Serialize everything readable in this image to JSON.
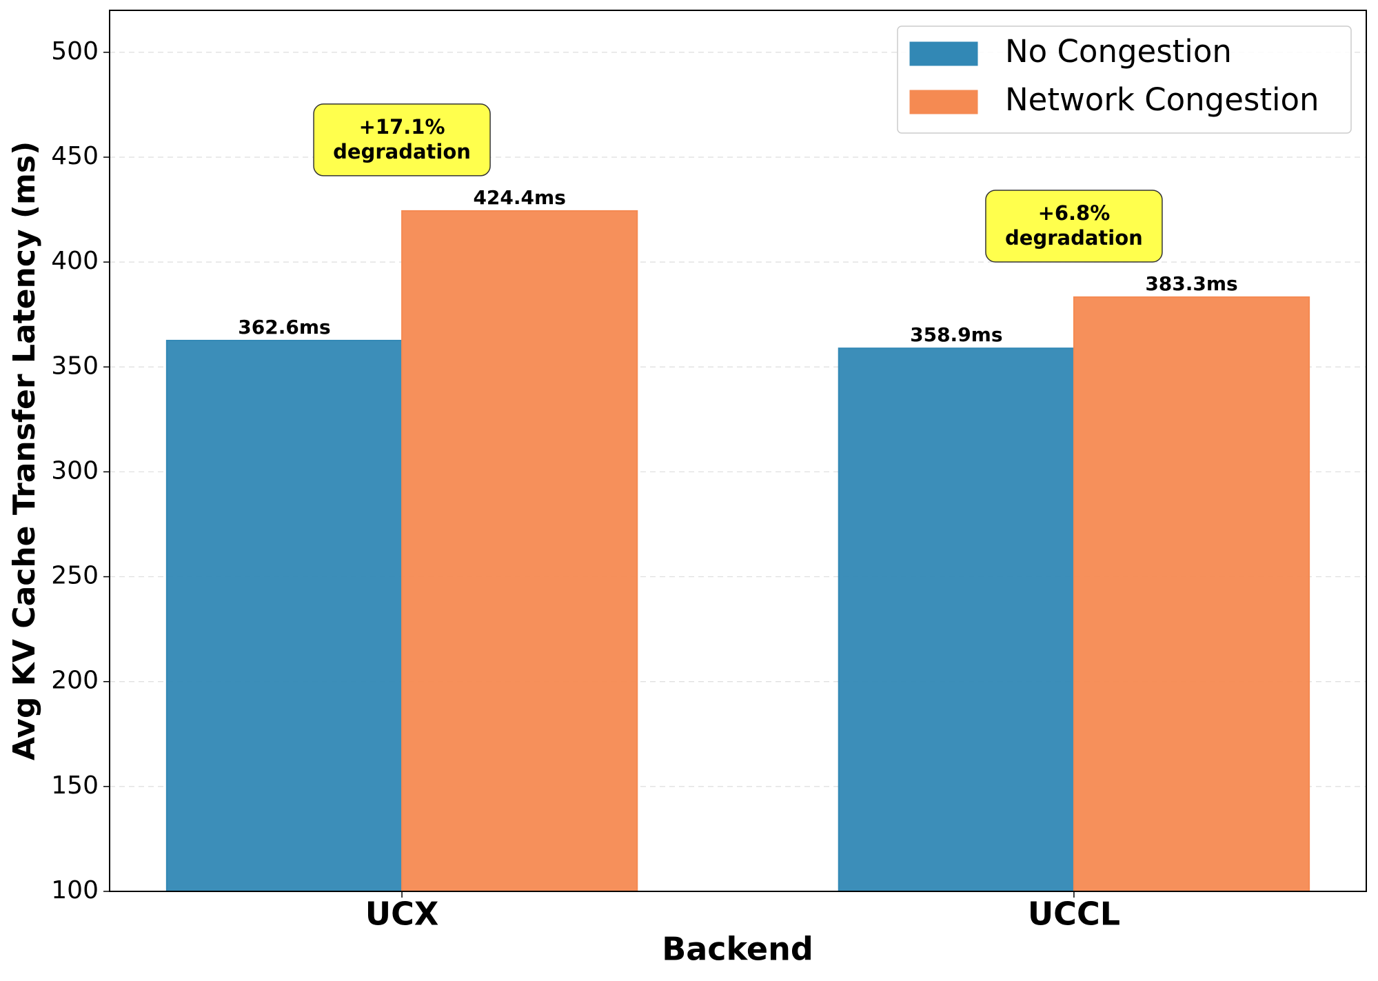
{
  "chart_data": {
    "type": "bar",
    "x_label": "Backend",
    "y_label": "Avg KV Cache Transfer Latency (ms)",
    "categories": [
      "UCX",
      "UCCL"
    ],
    "series": [
      {
        "name": "No Congestion",
        "color": "#3288b5",
        "values": [
          362.6,
          358.9
        ],
        "value_labels": [
          "362.6ms",
          "358.9ms"
        ]
      },
      {
        "name": "Network Congestion",
        "color": "#f58a52",
        "values": [
          424.4,
          383.3
        ],
        "value_labels": [
          "424.4ms",
          "383.3ms"
        ]
      }
    ],
    "annotations": [
      {
        "lines": [
          "+17.1%",
          "degradation"
        ],
        "color": "#ffff4d"
      },
      {
        "lines": [
          "+6.8%",
          "degradation"
        ],
        "color": "#ffff4d"
      }
    ],
    "ylim": [
      100,
      520
    ],
    "yticks": [
      100,
      150,
      200,
      250,
      300,
      350,
      400,
      450,
      500
    ],
    "grid": true,
    "legend": "upper right"
  }
}
